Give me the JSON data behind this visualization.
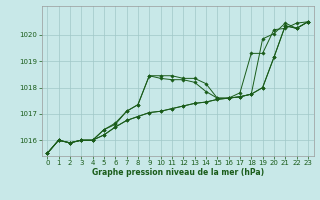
{
  "title": "",
  "xlabel": "Graphe pression niveau de la mer (hPa)",
  "ylabel": "",
  "background_color": "#c8e8e8",
  "grid_color": "#a0c8c8",
  "line_color": "#1a5c1a",
  "x_ticks": [
    0,
    1,
    2,
    3,
    4,
    5,
    6,
    7,
    8,
    9,
    10,
    11,
    12,
    13,
    14,
    15,
    16,
    17,
    18,
    19,
    20,
    21,
    22,
    23
  ],
  "y_ticks": [
    1016,
    1017,
    1018,
    1019,
    1020
  ],
  "ylim": [
    1015.4,
    1021.1
  ],
  "xlim": [
    -0.5,
    23.5
  ],
  "series": [
    [
      1015.5,
      1016.0,
      1015.9,
      1016.0,
      1016.0,
      1016.2,
      1016.5,
      1016.75,
      1016.9,
      1017.05,
      1017.1,
      1017.2,
      1017.3,
      1017.4,
      1017.45,
      1017.55,
      1017.6,
      1017.65,
      1017.75,
      1018.0,
      1019.15,
      1020.35,
      1020.25,
      1020.5
    ],
    [
      1015.5,
      1016.0,
      1015.9,
      1016.0,
      1016.0,
      1016.4,
      1016.6,
      1017.1,
      1017.35,
      1018.45,
      1018.35,
      1018.3,
      1018.3,
      1018.2,
      1017.85,
      1017.6,
      1017.6,
      1017.65,
      1017.75,
      1018.0,
      1019.15,
      1020.35,
      1020.25,
      1020.5
    ],
    [
      1015.5,
      1016.0,
      1015.9,
      1016.0,
      1016.0,
      1016.4,
      1016.65,
      1017.1,
      1017.35,
      1018.45,
      1018.45,
      1018.45,
      1018.35,
      1018.35,
      1018.15,
      1017.6,
      1017.6,
      1017.8,
      1019.3,
      1019.3,
      1020.2,
      1020.25,
      1020.45,
      1020.5
    ],
    [
      1015.5,
      1016.0,
      1015.9,
      1016.0,
      1016.0,
      1016.2,
      1016.5,
      1016.75,
      1016.9,
      1017.05,
      1017.1,
      1017.2,
      1017.3,
      1017.4,
      1017.45,
      1017.55,
      1017.6,
      1017.65,
      1017.75,
      1019.85,
      1020.05,
      1020.45,
      1020.25,
      1020.5
    ]
  ],
  "tick_fontsize": 5,
  "xlabel_fontsize": 5.5
}
